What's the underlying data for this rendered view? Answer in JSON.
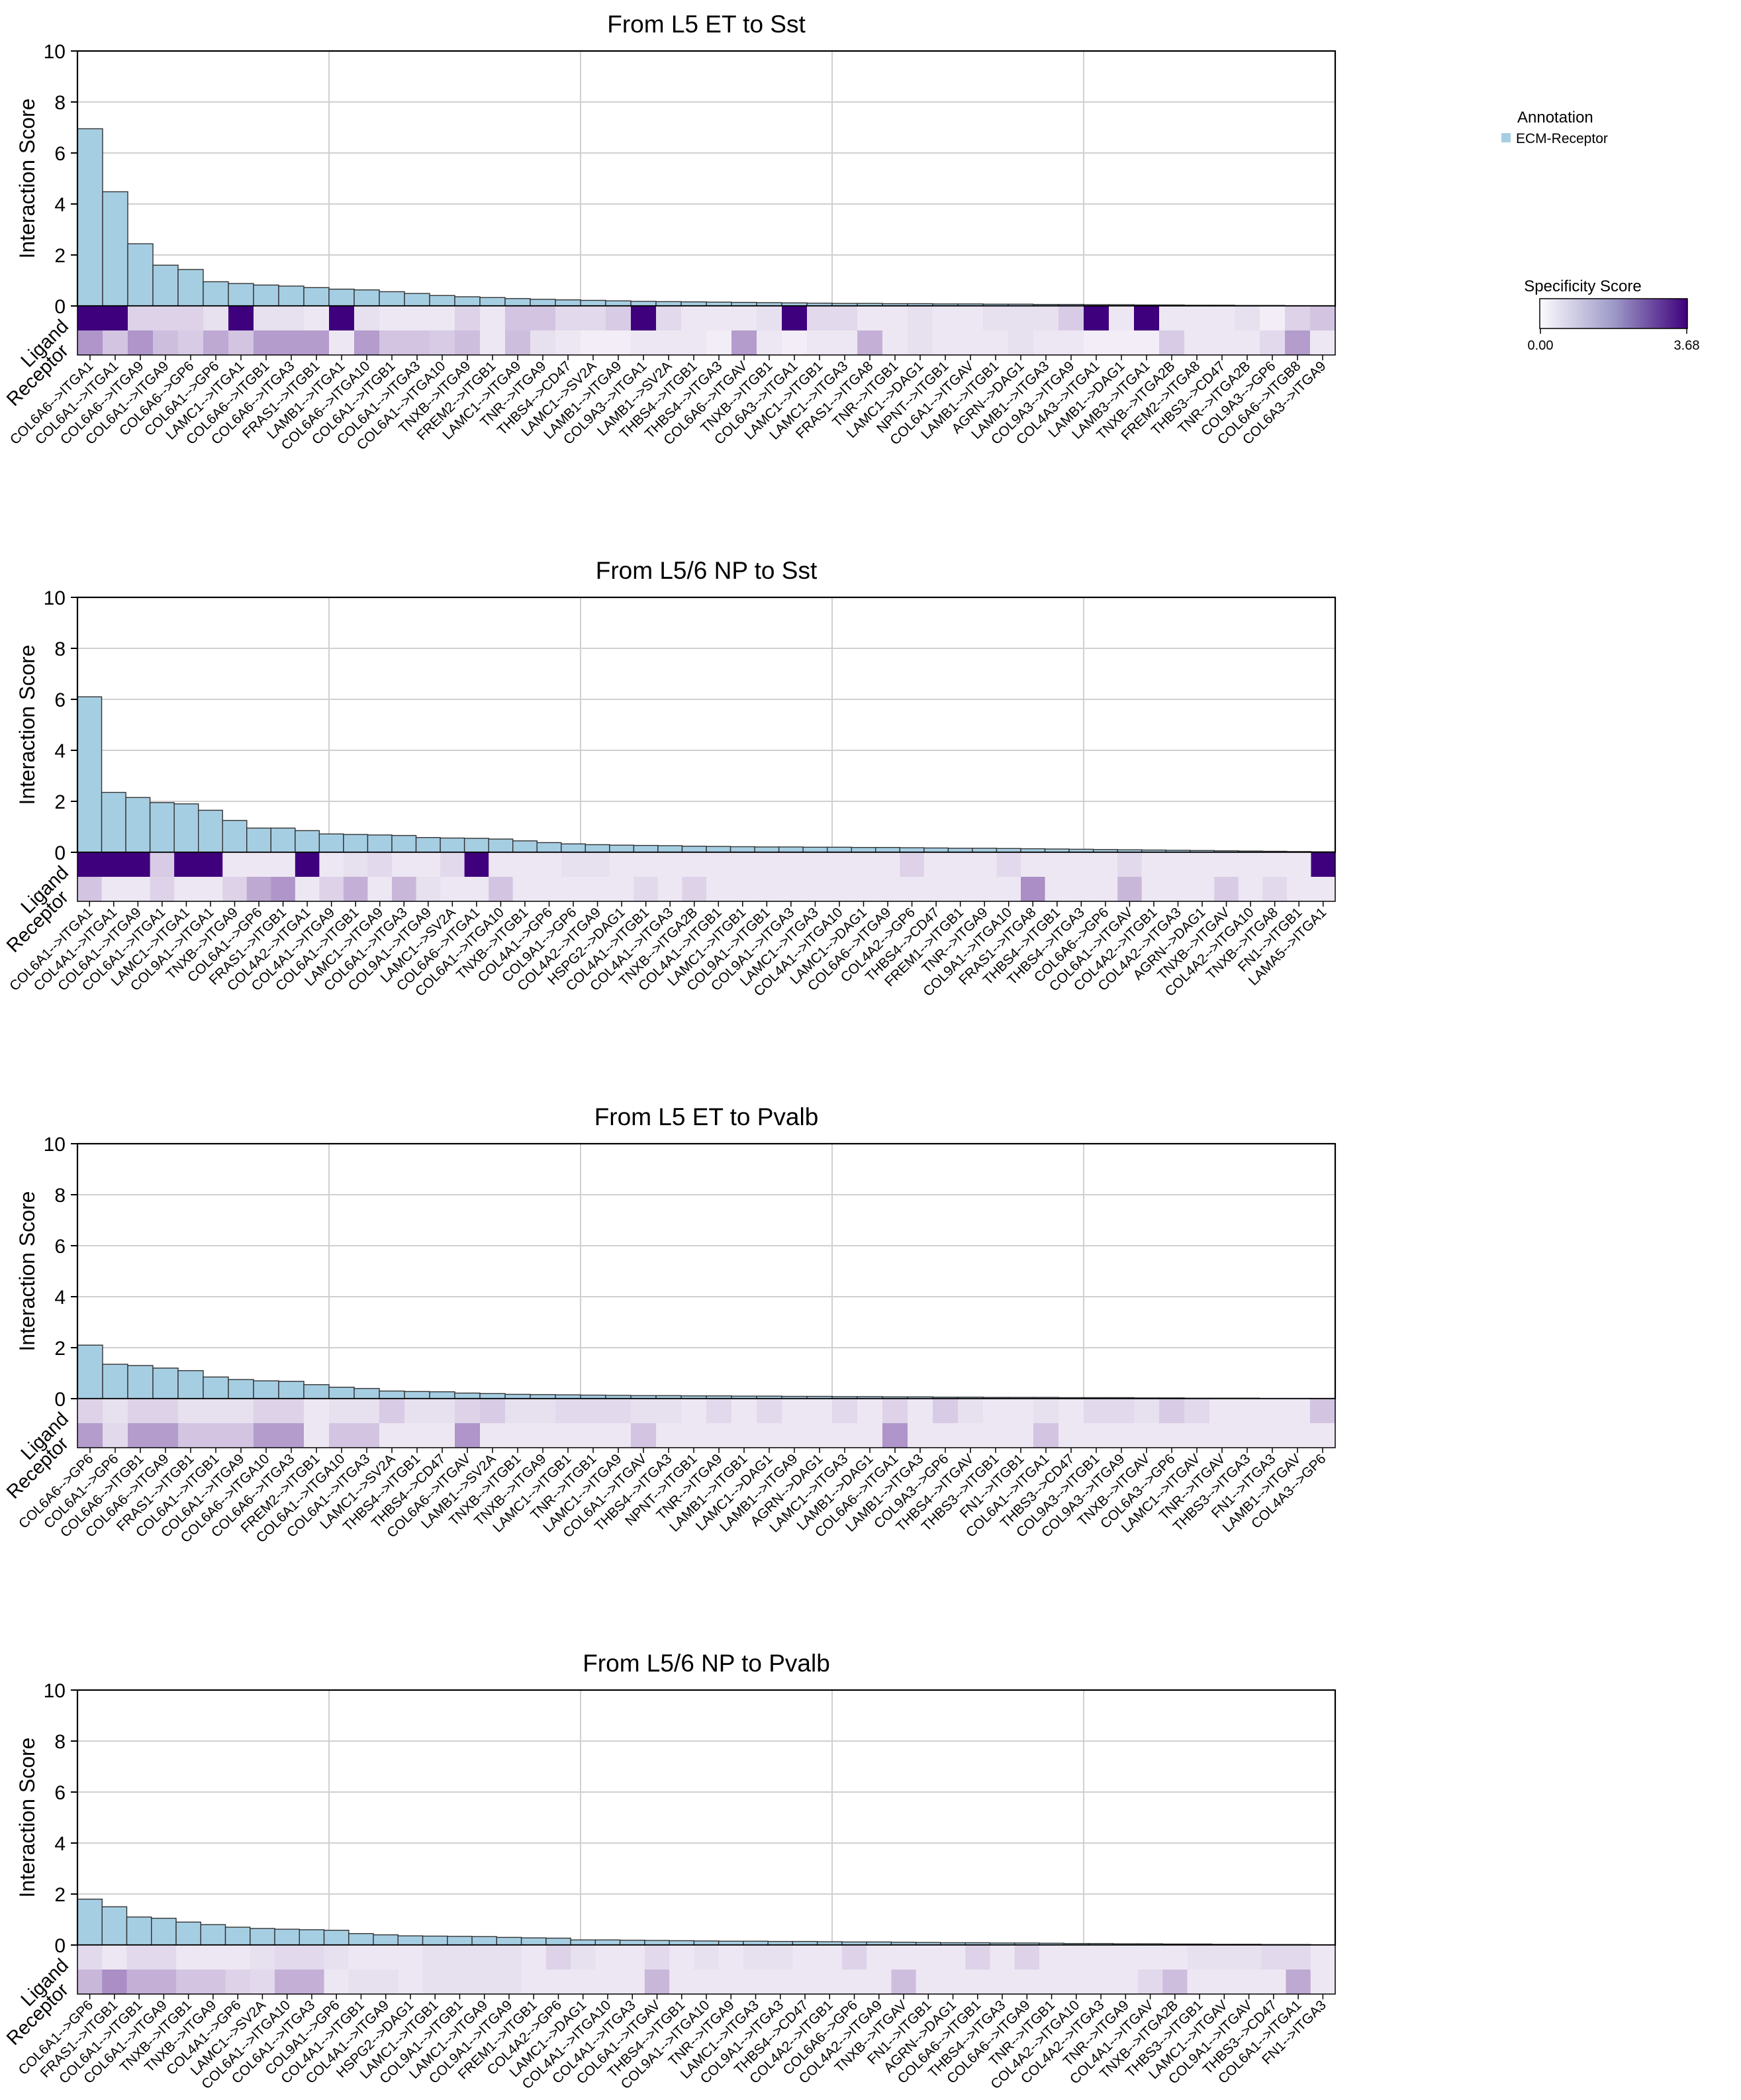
{
  "legend": {
    "annotation_title": "Annotation",
    "annotation_label": "ECM-Receptor",
    "annotation_color": "#a6cee3",
    "specificity_title": "Specificity Score",
    "specificity_min": "0.00",
    "specificity_max": "3.68",
    "specificity_min_color": "#fcfbfd",
    "specificity_max_color": "#3f007d"
  },
  "row_labels": {
    "ligand": "Ligand",
    "receptor": "Receptor"
  },
  "chart_data": [
    {
      "type": "bar",
      "title": "From L5 ET to Sst",
      "ylabel": "Interaction Score",
      "ylim": [
        0,
        10
      ],
      "yticks": [
        "0",
        "2",
        "4",
        "6",
        "8",
        "10"
      ],
      "grid": true,
      "categories": [
        "COL6A6-->ITGA1",
        "COL6A1-->ITGA1",
        "COL6A6-->ITGA9",
        "COL6A1-->ITGA9",
        "COL6A6-->GP6",
        "COL6A1-->GP6",
        "LAMC1-->ITGA1",
        "COL6A6-->ITGB1",
        "COL6A6-->ITGA3",
        "FRAS1-->ITGB1",
        "LAMB1-->ITGA1",
        "COL6A6-->ITGA10",
        "COL6A1-->ITGB1",
        "COL6A1-->ITGA3",
        "COL6A1-->ITGA10",
        "TNXB-->ITGA9",
        "FREM2-->ITGB1",
        "LAMC1-->ITGA9",
        "TNR-->ITGA9",
        "THBS4-->CD47",
        "LAMC1-->SV2A",
        "LAMB1-->ITGA9",
        "COL9A3-->ITGA1",
        "LAMB1-->SV2A",
        "THBS4-->ITGB1",
        "THBS4-->ITGA3",
        "COL6A6-->ITGAV",
        "TNXB-->ITGB1",
        "COL6A3-->ITGA1",
        "LAMC1-->ITGB1",
        "LAMC1-->ITGA3",
        "FRAS1-->ITGA8",
        "TNR-->ITGB1",
        "LAMC1-->DAG1",
        "NPNT-->ITGB1",
        "COL6A1-->ITGAV",
        "LAMB1-->ITGB1",
        "AGRN-->DAG1",
        "LAMB1-->ITGA3",
        "COL9A3-->ITGA9",
        "COL4A3-->ITGA1",
        "LAMB1-->DAG1",
        "LAMB3-->ITGA1",
        "TNXB-->ITGA2B",
        "FREM2-->ITGA8",
        "THBS3-->CD47",
        "TNR-->ITGA2B",
        "COL9A3-->GP6",
        "COL6A6-->ITGB8",
        "COL6A3-->ITGA9"
      ],
      "values": [
        6.95,
        4.48,
        2.44,
        1.6,
        1.43,
        0.95,
        0.88,
        0.82,
        0.78,
        0.72,
        0.66,
        0.63,
        0.56,
        0.49,
        0.41,
        0.36,
        0.33,
        0.29,
        0.26,
        0.24,
        0.22,
        0.2,
        0.18,
        0.17,
        0.16,
        0.15,
        0.14,
        0.13,
        0.12,
        0.11,
        0.1,
        0.1,
        0.09,
        0.09,
        0.08,
        0.08,
        0.07,
        0.07,
        0.06,
        0.06,
        0.05,
        0.05,
        0.04,
        0.04,
        0.03,
        0.03,
        0.02,
        0.02,
        0.01,
        0.01
      ],
      "ligand_specificity": [
        3.68,
        3.68,
        0.6,
        0.6,
        0.6,
        0.4,
        3.68,
        0.4,
        0.4,
        0.3,
        3.68,
        0.4,
        0.3,
        0.3,
        0.3,
        0.6,
        0.3,
        0.8,
        0.8,
        0.5,
        0.5,
        0.7,
        3.68,
        0.5,
        0.3,
        0.3,
        0.3,
        0.4,
        3.68,
        0.5,
        0.5,
        0.3,
        0.3,
        0.4,
        0.3,
        0.3,
        0.4,
        0.4,
        0.4,
        0.7,
        3.68,
        0.3,
        3.68,
        0.3,
        0.3,
        0.3,
        0.4,
        0.2,
        0.6,
        0.8
      ],
      "receptor_specificity": [
        1.5,
        0.8,
        1.5,
        0.9,
        0.7,
        1.2,
        0.8,
        1.4,
        1.4,
        1.4,
        0.3,
        1.4,
        0.8,
        0.8,
        0.7,
        0.9,
        0.3,
        0.9,
        0.4,
        0.3,
        0.2,
        0.2,
        0.3,
        0.3,
        0.3,
        0.2,
        1.4,
        0.3,
        0.2,
        0.3,
        0.3,
        1.1,
        0.3,
        0.4,
        0.3,
        0.3,
        0.3,
        0.4,
        0.3,
        0.3,
        0.2,
        0.2,
        0.2,
        0.7,
        0.3,
        0.3,
        0.3,
        0.5,
        1.4,
        0.3
      ]
    },
    {
      "type": "bar",
      "title": "From L5/6 NP to Sst",
      "ylabel": "Interaction Score",
      "ylim": [
        0,
        10
      ],
      "yticks": [
        "0",
        "2",
        "4",
        "6",
        "8",
        "10"
      ],
      "grid": true,
      "categories": [
        "COL6A1-->ITGA1",
        "COL4A1-->ITGA1",
        "COL6A1-->ITGA9",
        "COL6A1-->ITGA1",
        "LAMC1-->ITGA1",
        "COL9A1-->ITGA1",
        "TNXB-->ITGA9",
        "COL6A1-->GP6",
        "FRAS1-->ITGB1",
        "COL4A2-->ITGA1",
        "COL4A1-->ITGA9",
        "COL6A1-->ITGB1",
        "LAMC1-->ITGA9",
        "COL6A1-->ITGA3",
        "COL9A1-->ITGA9",
        "LAMC1-->SV2A",
        "COL6A6-->ITGA1",
        "COL6A1-->ITGA10",
        "TNXB-->ITGB1",
        "COL4A1-->GP6",
        "COL9A1-->GP6",
        "COL4A2-->ITGA9",
        "HSPG2-->DAG1",
        "COL4A1-->ITGB1",
        "COL4A1-->ITGA3",
        "TNXB-->ITGA2B",
        "COL4A1-->ITGB1",
        "LAMC1-->ITGB1",
        "COL9A1-->ITGB1",
        "COL9A1-->ITGA3",
        "LAMC1-->ITGA3",
        "COL4A1-->ITGA10",
        "LAMC1-->DAG1",
        "COL6A6-->ITGA9",
        "COL4A2-->GP6",
        "THBS4-->CD47",
        "FREM1-->ITGB1",
        "TNR-->ITGA9",
        "COL9A1-->ITGA10",
        "FRAS1-->ITGA8",
        "THBS4-->ITGB1",
        "THBS4-->ITGA3",
        "COL6A6-->GP6",
        "COL6A1-->ITGAV",
        "COL4A2-->ITGB1",
        "COL4A2-->ITGA3",
        "AGRN-->DAG1",
        "TNXB-->ITGAV",
        "COL4A2-->ITGA10",
        "TNXB-->ITGA8",
        "FN1-->ITGB1",
        "LAMA5-->ITGA1"
      ],
      "values": [
        6.1,
        2.35,
        2.15,
        1.95,
        1.9,
        1.65,
        1.25,
        0.95,
        0.95,
        0.85,
        0.72,
        0.7,
        0.68,
        0.66,
        0.58,
        0.56,
        0.55,
        0.52,
        0.45,
        0.38,
        0.33,
        0.3,
        0.28,
        0.27,
        0.26,
        0.24,
        0.23,
        0.22,
        0.21,
        0.21,
        0.2,
        0.2,
        0.19,
        0.19,
        0.18,
        0.17,
        0.16,
        0.16,
        0.15,
        0.14,
        0.13,
        0.12,
        0.11,
        0.1,
        0.09,
        0.08,
        0.07,
        0.06,
        0.05,
        0.04,
        0.03,
        0.02
      ],
      "ligand_specificity": [
        3.68,
        3.68,
        3.68,
        0.7,
        3.68,
        3.68,
        0.3,
        0.3,
        0.3,
        3.68,
        0.3,
        0.4,
        0.5,
        0.3,
        0.3,
        0.5,
        3.68,
        0.3,
        0.3,
        0.3,
        0.4,
        0.4,
        0.3,
        0.3,
        0.3,
        0.3,
        0.3,
        0.3,
        0.3,
        0.3,
        0.3,
        0.3,
        0.3,
        0.3,
        0.6,
        0.3,
        0.3,
        0.3,
        0.5,
        0.3,
        0.3,
        0.3,
        0.3,
        0.5,
        0.3,
        0.3,
        0.3,
        0.3,
        0.3,
        0.3,
        0.3,
        3.68
      ],
      "receptor_specificity": [
        0.8,
        0.3,
        0.3,
        0.6,
        0.3,
        0.3,
        0.6,
        1.2,
        1.5,
        0.3,
        0.6,
        1.1,
        0.3,
        1.0,
        0.4,
        0.3,
        0.3,
        0.8,
        0.3,
        0.3,
        0.3,
        0.3,
        0.3,
        0.5,
        0.3,
        0.6,
        0.3,
        0.3,
        0.3,
        0.3,
        0.3,
        0.3,
        0.3,
        0.3,
        0.3,
        0.3,
        0.3,
        0.3,
        0.3,
        1.6,
        0.3,
        0.3,
        0.3,
        1.0,
        0.3,
        0.3,
        0.3,
        0.7,
        0.3,
        0.5,
        0.3,
        0.3
      ]
    },
    {
      "type": "bar",
      "title": "From L5 ET to Pvalb",
      "ylabel": "Interaction Score",
      "ylim": [
        0,
        10
      ],
      "yticks": [
        "0",
        "2",
        "4",
        "6",
        "8",
        "10"
      ],
      "grid": true,
      "categories": [
        "COL6A6-->GP6",
        "COL6A1-->GP6",
        "COL6A6-->ITGB1",
        "COL6A6-->ITGA9",
        "FRAS1-->ITGB1",
        "COL6A1-->ITGB1",
        "COL6A1-->ITGA9",
        "COL6A6-->ITGA10",
        "COL6A6-->ITGA3",
        "FREM2-->ITGB1",
        "COL6A1-->ITGA10",
        "COL6A1-->ITGA3",
        "LAMC1-->SV2A",
        "THBS4-->ITGB1",
        "THBS4-->CD47",
        "COL6A6-->ITGAV",
        "LAMB1-->SV2A",
        "TNXB-->ITGB1",
        "TNXB-->ITGA9",
        "LAMC1-->ITGB1",
        "TNR-->ITGB1",
        "LAMC1-->ITGA9",
        "COL6A1-->ITGAV",
        "THBS4-->ITGA3",
        "NPNT-->ITGB1",
        "TNR-->ITGA9",
        "LAMB1-->ITGB1",
        "LAMC1-->DAG1",
        "LAMB1-->ITGA9",
        "AGRN-->DAG1",
        "LAMC1-->ITGA3",
        "LAMB1-->DAG1",
        "COL6A6-->ITGA1",
        "LAMB1-->ITGA3",
        "COL9A3-->GP6",
        "THBS4-->ITGAV",
        "THBS3-->ITGB1",
        "FN1-->ITGB1",
        "COL6A1-->ITGA1",
        "THBS3-->CD47",
        "COL9A3-->ITGB1",
        "COL9A3-->ITGA9",
        "TNXB-->ITGAV",
        "COL6A3-->GP6",
        "LAMC1-->ITGAV",
        "TNR-->ITGAV",
        "THBS3-->ITGA3",
        "FN1-->ITGA3",
        "LAMB1-->ITGAV",
        "COL4A3-->GP6"
      ],
      "values": [
        2.1,
        1.35,
        1.3,
        1.2,
        1.1,
        0.85,
        0.75,
        0.7,
        0.68,
        0.55,
        0.45,
        0.4,
        0.3,
        0.28,
        0.27,
        0.22,
        0.2,
        0.17,
        0.16,
        0.15,
        0.14,
        0.13,
        0.12,
        0.12,
        0.11,
        0.11,
        0.1,
        0.1,
        0.09,
        0.09,
        0.08,
        0.08,
        0.07,
        0.07,
        0.06,
        0.06,
        0.05,
        0.05,
        0.05,
        0.04,
        0.04,
        0.04,
        0.03,
        0.03,
        0.02,
        0.02,
        0.02,
        0.01,
        0.01,
        0.01
      ],
      "ligand_specificity": [
        0.6,
        0.4,
        0.6,
        0.6,
        0.4,
        0.4,
        0.4,
        0.6,
        0.6,
        0.3,
        0.4,
        0.4,
        0.7,
        0.4,
        0.4,
        0.6,
        0.7,
        0.4,
        0.4,
        0.5,
        0.5,
        0.5,
        0.4,
        0.4,
        0.3,
        0.5,
        0.3,
        0.5,
        0.3,
        0.3,
        0.5,
        0.3,
        0.6,
        0.3,
        0.7,
        0.4,
        0.3,
        0.3,
        0.4,
        0.3,
        0.5,
        0.5,
        0.4,
        0.7,
        0.5,
        0.3,
        0.3,
        0.3,
        0.3,
        0.8
      ],
      "receptor_specificity": [
        1.4,
        0.5,
        1.4,
        1.4,
        0.8,
        0.8,
        0.8,
        1.4,
        1.4,
        0.3,
        0.8,
        0.8,
        0.3,
        0.3,
        0.3,
        1.5,
        0.3,
        0.3,
        0.3,
        0.3,
        0.3,
        0.3,
        0.8,
        0.3,
        0.3,
        0.3,
        0.3,
        0.3,
        0.3,
        0.3,
        0.3,
        0.3,
        1.5,
        0.3,
        0.3,
        0.3,
        0.3,
        0.3,
        0.8,
        0.3,
        0.3,
        0.3,
        0.3,
        0.3,
        0.3,
        0.3,
        0.3,
        0.3,
        0.3,
        0.3
      ]
    },
    {
      "type": "bar",
      "title": "From L5/6 NP to Pvalb",
      "ylabel": "Interaction Score",
      "ylim": [
        0,
        10
      ],
      "yticks": [
        "0",
        "2",
        "4",
        "6",
        "8",
        "10"
      ],
      "grid": true,
      "categories": [
        "COL6A1-->GP6",
        "FRAS1-->ITGB1",
        "COL6A1-->ITGB1",
        "COL6A1-->ITGA9",
        "TNXB-->ITGB1",
        "TNXB-->ITGA9",
        "COL4A1-->GP6",
        "LAMC1-->SV2A",
        "COL6A1-->ITGA10",
        "COL6A1-->ITGA3",
        "COL9A1-->GP6",
        "COL4A1-->ITGB1",
        "COL4A1-->ITGA9",
        "HSPG2-->DAG1",
        "LAMC1-->ITGB1",
        "COL9A1-->ITGB1",
        "LAMC1-->ITGA9",
        "COL9A1-->ITGA9",
        "FREM1-->ITGB1",
        "COL4A2-->GP6",
        "LAMC1-->DAG1",
        "COL4A1-->ITGA10",
        "COL4A1-->ITGA3",
        "COL6A1-->ITGAV",
        "THBS4-->ITGB1",
        "COL9A1-->ITGA10",
        "TNR-->ITGA9",
        "LAMC1-->ITGA3",
        "COL9A1-->ITGA3",
        "THBS4-->CD47",
        "COL4A2-->ITGB1",
        "COL6A6-->GP6",
        "COL4A2-->ITGA9",
        "TNXB-->ITGAV",
        "FN1-->ITGB1",
        "AGRN-->DAG1",
        "COL6A6-->ITGB1",
        "THBS4-->ITGA3",
        "COL6A6-->ITGA9",
        "TNR-->ITGB1",
        "COL4A2-->ITGA10",
        "COL4A2-->ITGA3",
        "TNR-->ITGA9",
        "COL4A1-->ITGAV",
        "TNXB-->ITGA2B",
        "THBS3-->ITGB1",
        "LAMC1-->ITGAV",
        "COL9A1-->ITGAV",
        "THBS3-->CD47",
        "COL6A1-->ITGA1",
        "FN1-->ITGA3"
      ],
      "values": [
        1.8,
        1.5,
        1.1,
        1.05,
        0.9,
        0.8,
        0.7,
        0.65,
        0.62,
        0.6,
        0.58,
        0.45,
        0.4,
        0.36,
        0.35,
        0.34,
        0.33,
        0.3,
        0.28,
        0.27,
        0.2,
        0.2,
        0.19,
        0.18,
        0.17,
        0.16,
        0.15,
        0.15,
        0.14,
        0.14,
        0.13,
        0.12,
        0.12,
        0.11,
        0.1,
        0.09,
        0.09,
        0.08,
        0.08,
        0.07,
        0.06,
        0.06,
        0.05,
        0.05,
        0.04,
        0.04,
        0.03,
        0.03,
        0.02,
        0.02,
        0.01
      ],
      "ligand_specificity": [
        0.5,
        0.3,
        0.5,
        0.5,
        0.3,
        0.3,
        0.3,
        0.4,
        0.5,
        0.5,
        0.4,
        0.3,
        0.3,
        0.3,
        0.4,
        0.4,
        0.4,
        0.4,
        0.3,
        0.6,
        0.4,
        0.3,
        0.3,
        0.5,
        0.3,
        0.4,
        0.3,
        0.4,
        0.4,
        0.3,
        0.3,
        0.6,
        0.3,
        0.3,
        0.3,
        0.3,
        0.6,
        0.3,
        0.6,
        0.3,
        0.3,
        0.3,
        0.3,
        0.3,
        0.3,
        0.4,
        0.4,
        0.4,
        0.5,
        0.5,
        0.3
      ],
      "receptor_specificity": [
        1.0,
        1.6,
        1.1,
        1.1,
        0.8,
        0.8,
        0.6,
        0.5,
        1.1,
        1.1,
        0.3,
        0.4,
        0.4,
        0.3,
        0.4,
        0.4,
        0.4,
        0.4,
        0.3,
        0.3,
        0.3,
        0.3,
        0.3,
        1.0,
        0.3,
        0.3,
        0.3,
        0.3,
        0.3,
        0.3,
        0.3,
        0.3,
        0.3,
        0.9,
        0.3,
        0.3,
        0.3,
        0.3,
        0.3,
        0.3,
        0.3,
        0.3,
        0.3,
        0.5,
        0.9,
        0.3,
        0.3,
        0.3,
        0.3,
        1.2,
        0.3
      ]
    }
  ]
}
